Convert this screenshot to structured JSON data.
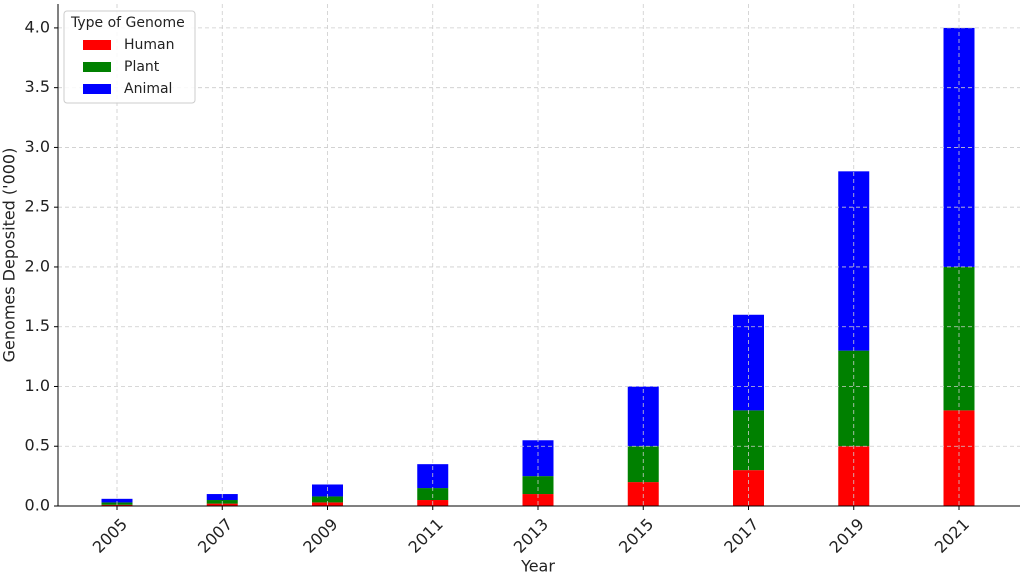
{
  "chart_data": {
    "type": "stacked_bar",
    "x_label": "Year",
    "y_label": "Genomes Deposited ('000)",
    "categories": [
      "2005",
      "2007",
      "2009",
      "2011",
      "2013",
      "2015",
      "2017",
      "2019",
      "2021"
    ],
    "series": [
      {
        "name": "Human",
        "color": "#ff0000",
        "values": [
          0.01,
          0.02,
          0.03,
          0.05,
          0.1,
          0.2,
          0.3,
          0.5,
          0.8
        ]
      },
      {
        "name": "Plant",
        "color": "#008000",
        "values": [
          0.02,
          0.03,
          0.05,
          0.1,
          0.15,
          0.3,
          0.5,
          0.8,
          1.2
        ]
      },
      {
        "name": "Animal",
        "color": "#0000ff",
        "values": [
          0.03,
          0.05,
          0.1,
          0.2,
          0.3,
          0.5,
          0.8,
          1.5,
          2.0
        ]
      }
    ],
    "ylim": [
      0,
      4.2
    ],
    "yticks": [
      {
        "value": 0,
        "label": "0.0"
      },
      0.5,
      {
        "value": 1,
        "label": "1.0"
      },
      1.5,
      {
        "value": 2,
        "label": "2.0"
      },
      2.5,
      {
        "value": 3,
        "label": "3.0"
      },
      3.5,
      {
        "value": 4,
        "label": "4.0"
      }
    ],
    "grid": true,
    "legend_title": "Type of Genome",
    "legend_position": "upper left"
  }
}
